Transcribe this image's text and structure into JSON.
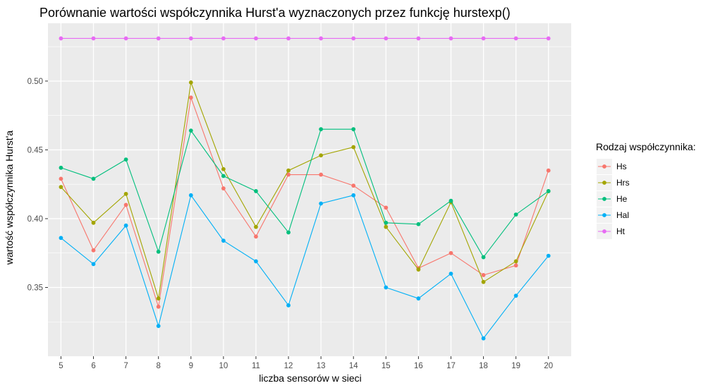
{
  "chart_data": {
    "type": "line",
    "title": "Porównanie wartości współczynnika Hurst'a wyznaczonych przez funkcję hurstexp()",
    "xlabel": "liczba sensorów w sieci",
    "ylabel": "wartość współczynnika Hurst'a",
    "x": [
      5,
      6,
      7,
      8,
      9,
      10,
      11,
      12,
      13,
      14,
      15,
      16,
      17,
      18,
      19,
      20
    ],
    "xlim": [
      4.6,
      20.7
    ],
    "ylim": [
      0.3,
      0.542
    ],
    "yticks": [
      0.35,
      0.4,
      0.45,
      0.5
    ],
    "ytick_labels": [
      "0.35",
      "0.40",
      "0.45",
      "0.50"
    ],
    "grid": true,
    "legend": {
      "title": "Rodzaj współczynnika:",
      "position": "right"
    },
    "series": [
      {
        "name": "Hs",
        "color": "#F8766D",
        "values": [
          0.429,
          0.377,
          0.41,
          0.336,
          0.488,
          0.422,
          0.387,
          0.432,
          0.432,
          0.424,
          0.408,
          0.364,
          0.375,
          0.359,
          0.366,
          0.435
        ]
      },
      {
        "name": "Hrs",
        "color": "#A3A500",
        "values": [
          0.423,
          0.397,
          0.418,
          0.342,
          0.499,
          0.436,
          0.394,
          0.435,
          0.446,
          0.452,
          0.394,
          0.363,
          0.412,
          0.354,
          0.369,
          0.42
        ]
      },
      {
        "name": "He",
        "color": "#00BF7D",
        "values": [
          0.437,
          0.429,
          0.443,
          0.376,
          0.464,
          0.431,
          0.42,
          0.39,
          0.465,
          0.465,
          0.397,
          0.396,
          0.413,
          0.372,
          0.403,
          0.42
        ]
      },
      {
        "name": "Hal",
        "color": "#00B0F6",
        "values": [
          0.386,
          0.367,
          0.395,
          0.322,
          0.417,
          0.384,
          0.369,
          0.337,
          0.411,
          0.417,
          0.35,
          0.342,
          0.36,
          0.313,
          0.344,
          0.373
        ]
      },
      {
        "name": "Ht",
        "color": "#E76BF3",
        "values": [
          0.531,
          0.531,
          0.531,
          0.531,
          0.531,
          0.531,
          0.531,
          0.531,
          0.531,
          0.531,
          0.531,
          0.531,
          0.531,
          0.531,
          0.531,
          0.531
        ]
      }
    ]
  }
}
